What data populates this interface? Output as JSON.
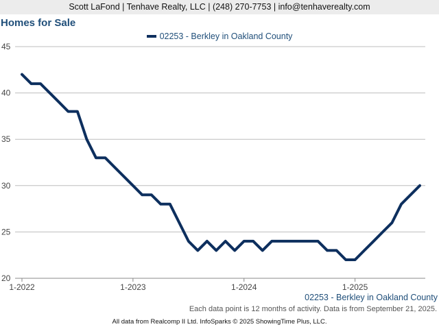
{
  "header": {
    "contact": "Scott LaFond | Tenhave Realty, LLC | (248) 270-7753 | info@tenhaverealty.com"
  },
  "footer": {
    "series_label": "02253 - Berkley in Oakland County",
    "note": "Each data point is 12 months of activity. Data is from September 21, 2025.",
    "credit": "All data from Realcomp II Ltd. InfoSparks © 2025 ShowingTime Plus, LLC."
  },
  "colors": {
    "line": "#0d2f5e",
    "title": "#1f4e79",
    "grid": "#bdbdbd",
    "header_bg": "#ececec"
  },
  "chart_data": {
    "type": "line",
    "title": "Homes for Sale",
    "legend": "top-center",
    "grid": true,
    "ylim": [
      20,
      45
    ],
    "yticks": [
      20,
      25,
      30,
      35,
      40,
      45
    ],
    "xticks": [
      "1-2022",
      "1-2023",
      "1-2024",
      "1-2025"
    ],
    "x": [
      "1-2022",
      "2-2022",
      "3-2022",
      "4-2022",
      "5-2022",
      "6-2022",
      "7-2022",
      "8-2022",
      "9-2022",
      "10-2022",
      "11-2022",
      "12-2022",
      "1-2023",
      "2-2023",
      "3-2023",
      "4-2023",
      "5-2023",
      "6-2023",
      "7-2023",
      "8-2023",
      "9-2023",
      "10-2023",
      "11-2023",
      "12-2023",
      "1-2024",
      "2-2024",
      "3-2024",
      "4-2024",
      "5-2024",
      "6-2024",
      "7-2024",
      "8-2024",
      "9-2024",
      "10-2024",
      "11-2024",
      "12-2024",
      "1-2025",
      "2-2025",
      "3-2025",
      "4-2025",
      "5-2025",
      "6-2025",
      "7-2025",
      "8-2025"
    ],
    "series": [
      {
        "name": "02253 - Berkley in Oakland County",
        "values": [
          42,
          41,
          41,
          40,
          39,
          38,
          38,
          35,
          33,
          33,
          32,
          31,
          30,
          29,
          29,
          28,
          28,
          26,
          24,
          23,
          24,
          23,
          24,
          23,
          24,
          24,
          23,
          24,
          24,
          24,
          24,
          24,
          24,
          23,
          23,
          22,
          22,
          23,
          24,
          25,
          26,
          28,
          29,
          30
        ]
      }
    ]
  }
}
